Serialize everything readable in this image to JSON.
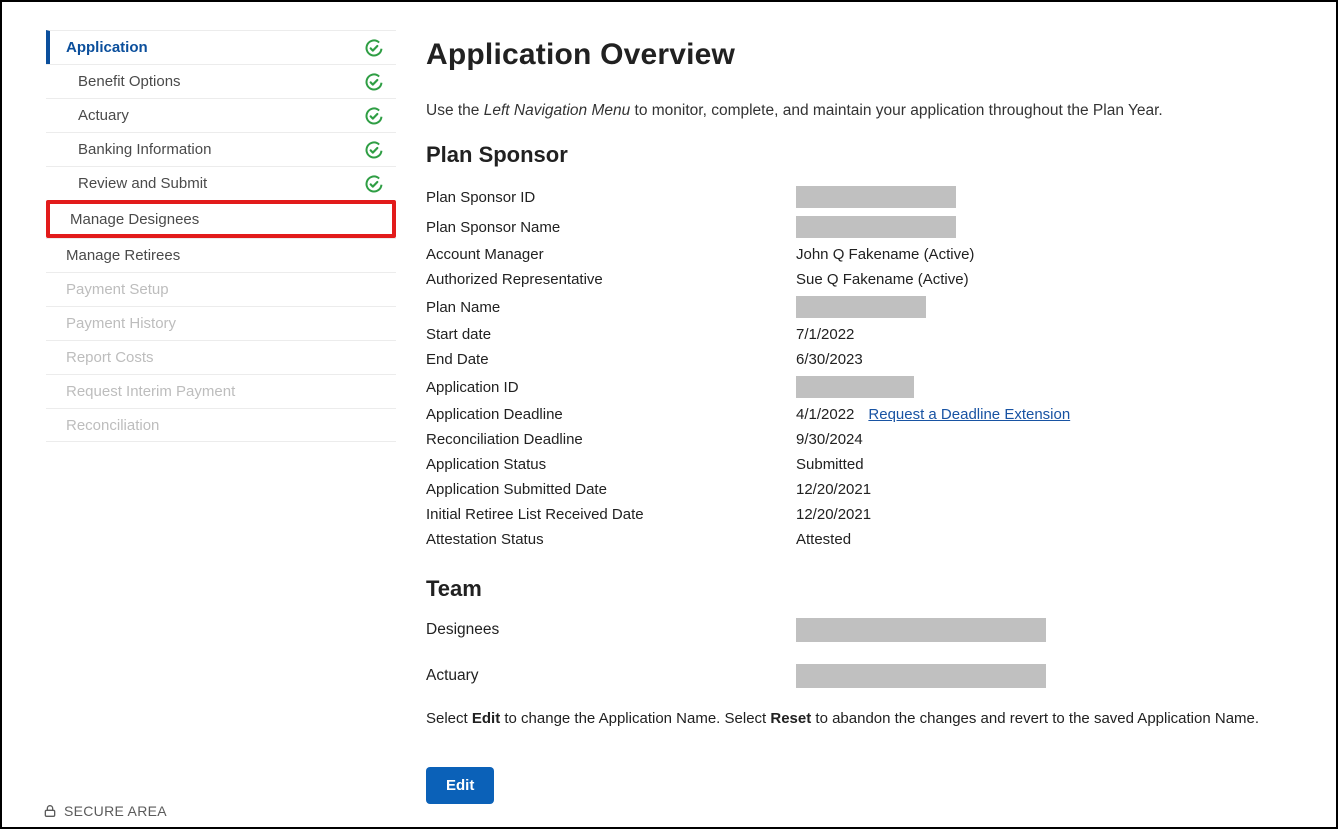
{
  "sidebar": {
    "items": [
      {
        "label": "Application",
        "kind": "active",
        "check": true
      },
      {
        "label": "Benefit Options",
        "kind": "sub",
        "check": true
      },
      {
        "label": "Actuary",
        "kind": "sub",
        "check": true
      },
      {
        "label": "Banking Information",
        "kind": "sub",
        "check": true
      },
      {
        "label": "Review and Submit",
        "kind": "sub",
        "check": true
      },
      {
        "label": "Manage Designees",
        "kind": "highlight",
        "check": false
      },
      {
        "label": "Manage Retirees",
        "kind": "normal",
        "check": false
      },
      {
        "label": "Payment Setup",
        "kind": "disabled",
        "check": false
      },
      {
        "label": "Payment History",
        "kind": "disabled",
        "check": false
      },
      {
        "label": "Report Costs",
        "kind": "disabled",
        "check": false
      },
      {
        "label": "Request Interim Payment",
        "kind": "disabled",
        "check": false
      },
      {
        "label": "Reconciliation",
        "kind": "disabled",
        "check": false
      }
    ],
    "highlight_color": "#e21b1b",
    "active_color": "#0b4f9c",
    "check_color": "#2f9e44"
  },
  "page": {
    "title": "Application Overview",
    "intro_prefix": "Use the ",
    "intro_em": "Left Navigation Menu",
    "intro_suffix": " to monitor, complete, and maintain your application throughout the Plan Year."
  },
  "plan_sponsor": {
    "heading": "Plan Sponsor",
    "rows": [
      {
        "k": "Plan Sponsor ID",
        "v": "",
        "redact_w": 160
      },
      {
        "k": "Plan Sponsor Name",
        "v": "",
        "redact_w": 160
      },
      {
        "k": "Account Manager",
        "v": "John Q Fakename (Active)"
      },
      {
        "k": "Authorized Representative",
        "v": "Sue Q Fakename (Active)"
      },
      {
        "k": "Plan Name",
        "v": "",
        "redact_w": 130
      },
      {
        "k": "Start date",
        "v": "7/1/2022"
      },
      {
        "k": "End Date",
        "v": "6/30/2023"
      },
      {
        "k": "Application ID",
        "v": "",
        "redact_w": 118
      },
      {
        "k": "Application Deadline",
        "v": "4/1/2022",
        "link": "Request a Deadline Extension"
      },
      {
        "k": "Reconciliation Deadline",
        "v": "9/30/2024"
      },
      {
        "k": "Application Status",
        "v": "Submitted"
      },
      {
        "k": "Application Submitted Date",
        "v": "12/20/2021"
      },
      {
        "k": "Initial Retiree List Received Date",
        "v": "12/20/2021"
      },
      {
        "k": "Attestation Status",
        "v": "Attested"
      }
    ]
  },
  "team": {
    "heading": "Team",
    "rows": [
      {
        "k": "Designees",
        "redact_w": 250
      },
      {
        "k": "Actuary",
        "redact_w": 250
      }
    ]
  },
  "edit_instructions": {
    "p1": "Select ",
    "b1": "Edit",
    "p2": " to change the Application Name. Select ",
    "b2": "Reset",
    "p3": " to abandon the changes and revert to the saved Application Name."
  },
  "buttons": {
    "edit": "Edit"
  },
  "footer": {
    "secure_area": "SECURE AREA"
  },
  "colors": {
    "link": "#1853a3",
    "button_bg": "#0b61b8",
    "redact": "#c0c0c0",
    "border": "#ececec",
    "text": "#212121",
    "muted": "#5b5b5b"
  }
}
